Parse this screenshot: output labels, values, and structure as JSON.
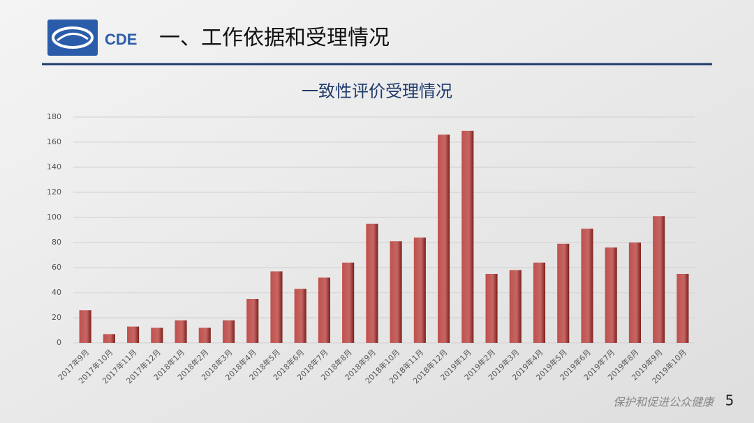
{
  "header": {
    "logo_text": "CDE",
    "title": "一、工作依据和受理情况"
  },
  "chart_data": {
    "type": "bar",
    "title": "一致性评价受理情况",
    "categories": [
      "2017年9月",
      "2017年10月",
      "2017年11月",
      "2017年12月",
      "2018年1月",
      "2018年2月",
      "2018年3月",
      "2018年4月",
      "2018年5月",
      "2018年6月",
      "2018年7月",
      "2018年8月",
      "2018年9月",
      "2018年10月",
      "2018年11月",
      "2018年12月",
      "2019年1月",
      "2019年2月",
      "2019年3月",
      "2019年4月",
      "2019年5月",
      "2019年6月",
      "2019年7月",
      "2019年8月",
      "2019年9月",
      "2019年10月"
    ],
    "values": [
      26,
      7,
      13,
      12,
      18,
      12,
      18,
      35,
      57,
      43,
      52,
      64,
      95,
      81,
      84,
      166,
      169,
      55,
      58,
      64,
      79,
      91,
      76,
      80,
      101,
      55
    ],
    "color": "#c0504d",
    "ylim": [
      0,
      180
    ],
    "yticks": [
      0,
      20,
      40,
      60,
      80,
      100,
      120,
      140,
      160,
      180
    ],
    "grid": true
  },
  "footer": {
    "slogan": "保护和促进公众健康",
    "page_number": "5"
  }
}
